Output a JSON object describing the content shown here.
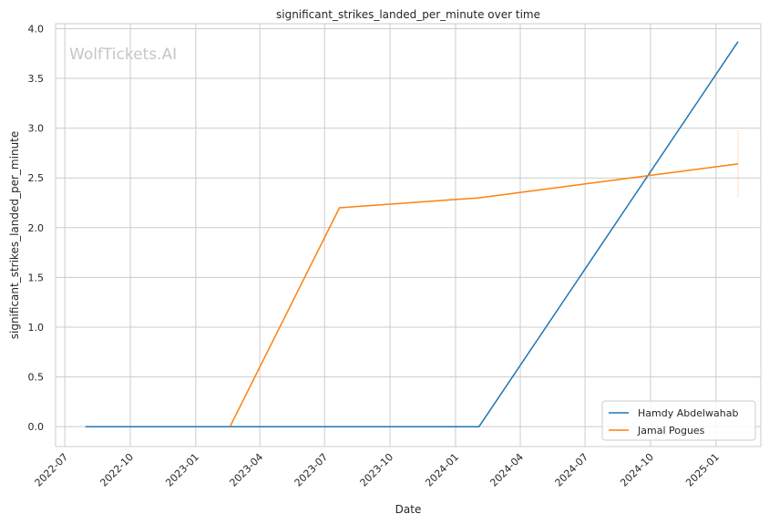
{
  "chart_data": {
    "type": "line",
    "title": "significant_strikes_landed_per_minute over time",
    "xlabel": "Date",
    "ylabel": "significant_strikes_landed_per_minute",
    "watermark": "WolfTickets.AI",
    "x_ticks": [
      "2022-07",
      "2022-10",
      "2023-01",
      "2023-04",
      "2023-07",
      "2023-10",
      "2024-01",
      "2024-04",
      "2024-07",
      "2024-10",
      "2025-01"
    ],
    "y_ticks": [
      "0.0",
      "0.5",
      "1.0",
      "1.5",
      "2.0",
      "2.5",
      "3.0",
      "3.5",
      "4.0"
    ],
    "xlim": [
      "2022-06-18",
      "2025-03-05"
    ],
    "ylim": [
      -0.2,
      4.05
    ],
    "grid": true,
    "legend_position": "lower-right",
    "series": [
      {
        "name": "Hamdy Abdelwahab",
        "color": "#1f77b4",
        "points": [
          {
            "x": "2022-07-30",
            "y": 0.0
          },
          {
            "x": "2024-02-03",
            "y": 0.0
          },
          {
            "x": "2025-02-01",
            "y": 3.87
          }
        ]
      },
      {
        "name": "Jamal Pogues",
        "color": "#ff7f0e",
        "points": [
          {
            "x": "2023-02-18",
            "y": 0.0
          },
          {
            "x": "2023-07-22",
            "y": 2.2
          },
          {
            "x": "2024-02-03",
            "y": 2.3
          },
          {
            "x": "2025-02-01",
            "y": 2.64
          }
        ],
        "error_band": {
          "x": "2025-02-01",
          "low": 2.3,
          "high": 2.98
        }
      }
    ]
  }
}
